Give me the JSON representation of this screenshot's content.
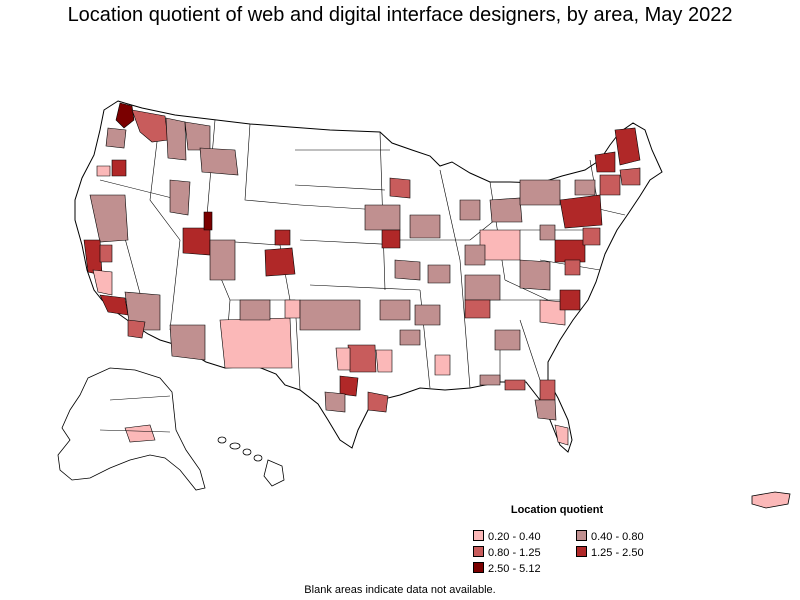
{
  "title": "Location quotient of web and digital interface designers, by area, May 2022",
  "legend": {
    "title": "Location quotient",
    "items": [
      {
        "label": "0.20 - 0.40",
        "color": "#fbb8b8"
      },
      {
        "label": "0.40 - 0.80",
        "color": "#c09090"
      },
      {
        "label": "0.80 - 1.25",
        "color": "#c85c5c"
      },
      {
        "label": "1.25 - 2.50",
        "color": "#b02828"
      },
      {
        "label": "2.50 - 5.12",
        "color": "#7a0000"
      }
    ]
  },
  "footnote": "Blank areas indicate data not available."
}
